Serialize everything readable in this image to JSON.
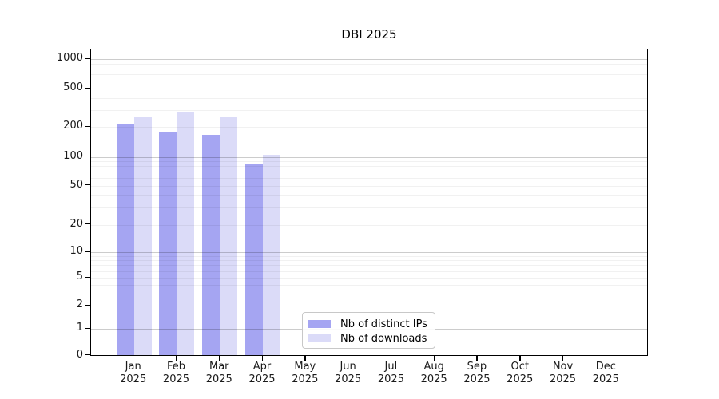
{
  "title": "DBI 2025",
  "chart_data": {
    "type": "bar",
    "title": "DBI 2025",
    "categories": [
      "Jan 2025",
      "Feb 2025",
      "Mar 2025",
      "Apr 2025",
      "May 2025",
      "Jun 2025",
      "Jul 2025",
      "Aug 2025",
      "Sep 2025",
      "Oct 2025",
      "Nov 2025",
      "Dec 2025"
    ],
    "series": [
      {
        "name": "Nb of distinct IPs",
        "color": "#a5a5f2",
        "values": [
          210,
          180,
          165,
          85,
          0,
          0,
          0,
          0,
          0,
          0,
          0,
          0
        ]
      },
      {
        "name": "Nb of downloads",
        "color": "#dbdbf8",
        "values": [
          255,
          290,
          250,
          105,
          0,
          0,
          0,
          0,
          0,
          0,
          0,
          0
        ]
      }
    ],
    "y_ticks": [
      0,
      1,
      2,
      5,
      10,
      20,
      50,
      100,
      200,
      500,
      1000
    ],
    "y_scale": "symlog",
    "ylim": [
      0,
      1300
    ],
    "grid": true,
    "legend_position": "lower center-left inside plot"
  },
  "colors": {
    "distinct_ips": "#a5a5f2",
    "downloads": "#dbdbf8",
    "axis": "#000000",
    "major_grid": "#c9c9c9",
    "minor_grid": "#ececec",
    "text": "#1a1a1a"
  }
}
